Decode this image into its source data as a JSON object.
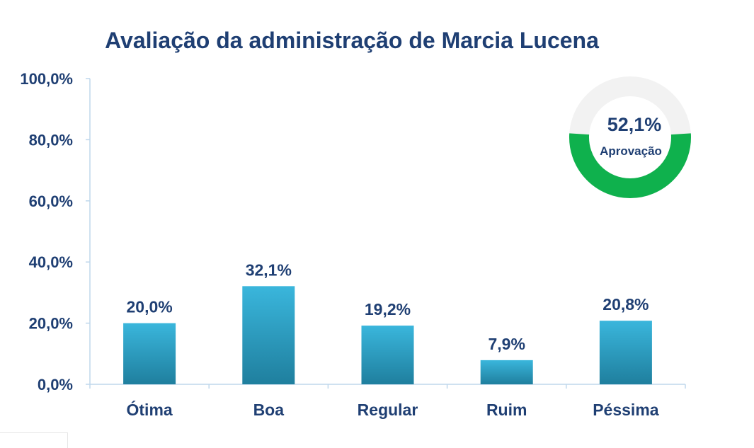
{
  "chart_data": {
    "type": "bar",
    "title": "Avaliação da administração de Marcia Lucena",
    "categories": [
      "Ótima",
      "Boa",
      "Regular",
      "Ruim",
      "Péssima"
    ],
    "values": [
      20.0,
      32.1,
      19.2,
      7.9,
      20.8
    ],
    "value_labels": [
      "20,0%",
      "32,1%",
      "19,2%",
      "7,9%",
      "20,8%"
    ],
    "ylim": [
      0,
      100
    ],
    "yticks": [
      0,
      20,
      40,
      60,
      80,
      100
    ],
    "ytick_labels": [
      "0,0%",
      "20,0%",
      "40,0%",
      "60,0%",
      "80,0%",
      "100,0%"
    ],
    "grid": false,
    "colors": {
      "bar_top": "#3ab6dc",
      "bar_bottom": "#1f7f9e",
      "text": "#1f3f73",
      "axis": "#bfd7ec",
      "donut_fill": "#0fb14d",
      "donut_track": "#f2f2f2"
    },
    "approval": {
      "value": 52.1,
      "value_label": "52,1%",
      "label": "Aprovação"
    }
  }
}
